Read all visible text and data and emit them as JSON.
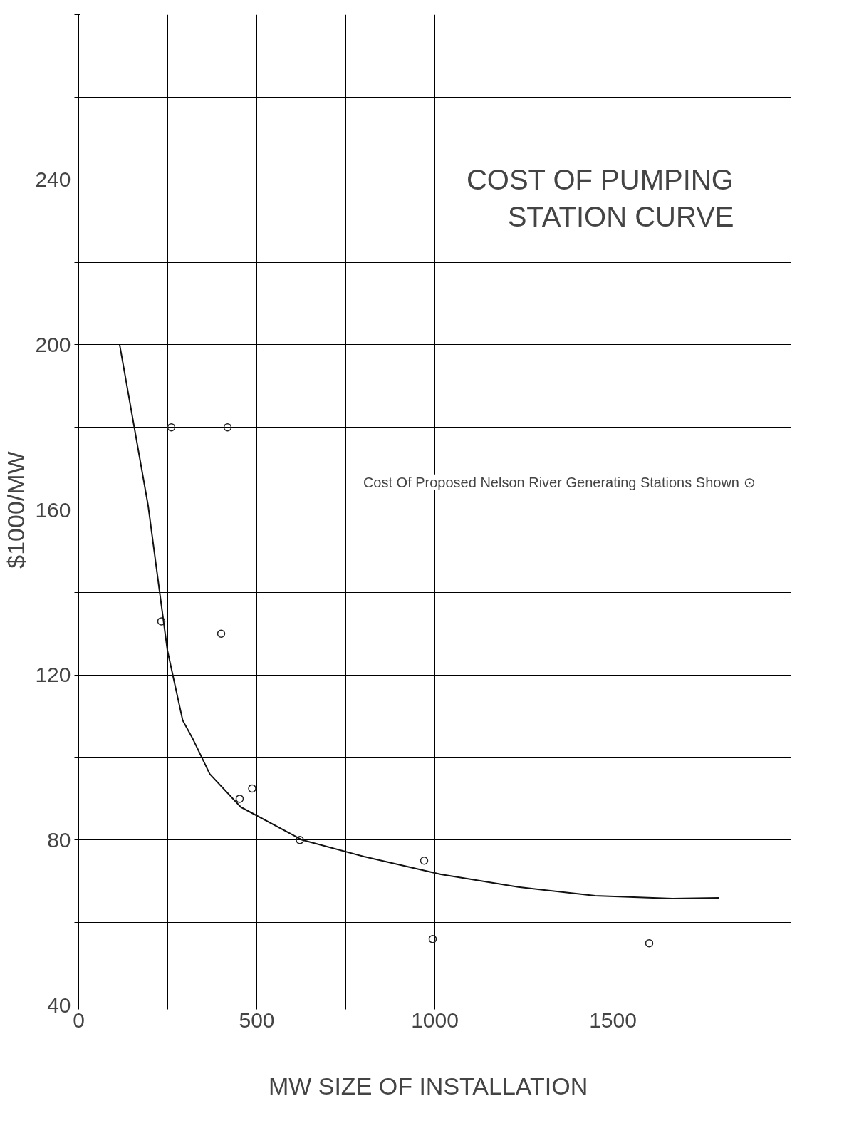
{
  "chart_data": {
    "type": "scatter",
    "title": "COST OF PUMPING STATION CURVE",
    "xlabel": "MW   SIZE OF INSTALLATION",
    "ylabel": "$1000/MW",
    "annotations": [
      "Cost Of Proposed Nelson River Generating Stations Shown ⊙"
    ],
    "grid": true,
    "xlim": [
      0,
      2000
    ],
    "ylim": [
      40,
      280
    ],
    "xticks": [
      0,
      {
        "value": 250,
        "label": null
      },
      500,
      {
        "value": 750,
        "label": null
      },
      1000,
      {
        "value": 1250,
        "label": null
      },
      1500,
      {
        "value": 1750,
        "label": null
      },
      {
        "value": 2000,
        "label": null
      }
    ],
    "yticks": [
      40,
      {
        "value": 60,
        "label": null
      },
      80,
      {
        "value": 100,
        "label": null
      },
      120,
      {
        "value": 140,
        "label": null
      },
      160,
      {
        "value": 180,
        "label": null
      },
      200,
      {
        "value": 220,
        "label": null
      },
      240,
      {
        "value": 260,
        "label": null
      },
      {
        "value": 280,
        "label": null
      }
    ],
    "series": [
      {
        "marker": "circle",
        "color": "#222222",
        "x": [
          260,
          418,
          232,
          400,
          452,
          487,
          621,
          970,
          994,
          1602
        ],
        "values": [
          180,
          180,
          133,
          130,
          90,
          92.5,
          80,
          75,
          56,
          55
        ]
      },
      {
        "type": "line",
        "color": "#111111",
        "x": [
          115,
          195,
          249,
          292,
          320,
          368,
          455,
          628,
          801,
          1017,
          1234,
          1450,
          1667,
          1797
        ],
        "values": [
          200,
          161,
          126,
          109,
          104.6,
          96,
          88,
          80,
          76,
          71.7,
          68.6,
          66.5,
          65.8,
          66
        ]
      }
    ]
  }
}
